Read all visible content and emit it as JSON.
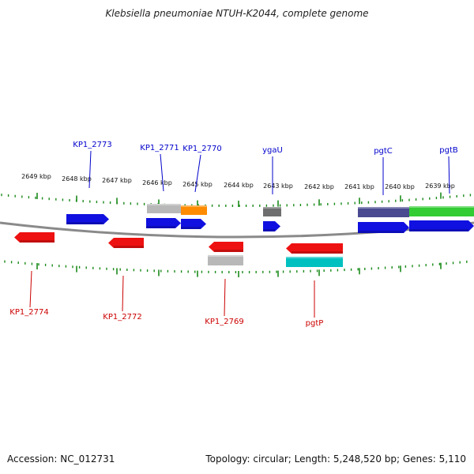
{
  "title": "Klebsiella pneumoniae NTUH-K2044, complete genome",
  "footer": {
    "accession": "Accession: NC_012731",
    "summary": "Topology: circular; Length: 5,248,520 bp; Genes: 5,110"
  },
  "colors": {
    "forward_label": "#0000cc",
    "reverse_label": "#cc0000",
    "ticks": "#1a8a1a",
    "backbone": "#888888"
  },
  "scale_labels": [
    {
      "kbp": 2649,
      "text": "2649 kbp"
    },
    {
      "kbp": 2648,
      "text": "2648 kbp"
    },
    {
      "kbp": 2647,
      "text": "2647 kbp"
    },
    {
      "kbp": 2646,
      "text": "2646 kbp"
    },
    {
      "kbp": 2645,
      "text": "2645 kbp"
    },
    {
      "kbp": 2644,
      "text": "2644 kbp"
    },
    {
      "kbp": 2643,
      "text": "2643 kbp"
    },
    {
      "kbp": 2642,
      "text": "2642 kbp"
    },
    {
      "kbp": 2641,
      "text": "2641 kbp"
    },
    {
      "kbp": 2640,
      "text": "2640 kbp"
    },
    {
      "kbp": 2639,
      "text": "2639 kbp"
    }
  ],
  "forward_genes": [
    {
      "label": "KP1_2773",
      "color": "#1010e0"
    },
    {
      "label": "KP1_2771",
      "color": "#1010e0"
    },
    {
      "label": "KP1_2770",
      "color": "#1010e0"
    },
    {
      "label": "ygaU",
      "color": "#1010e0"
    },
    {
      "label": "pgtC",
      "color": "#1010e0"
    },
    {
      "label": "pgtB",
      "color": "#1010e0"
    }
  ],
  "reverse_genes": [
    {
      "label": "KP1_2774",
      "color": "#ee1111"
    },
    {
      "label": "KP1_2772",
      "color": "#ee1111"
    },
    {
      "label": "KP1_2769",
      "color": "#ee1111"
    },
    {
      "label": "pgtP",
      "color": "#ee1111"
    }
  ],
  "cog_blocks": [
    {
      "color": "#b8b8b8"
    },
    {
      "color": "#ff8c00"
    },
    {
      "color": "#6e6e6e"
    },
    {
      "color": "#4a4a90"
    },
    {
      "color": "#33cc33"
    },
    {
      "color": "#b8b8b8"
    },
    {
      "color": "#00c0c0"
    }
  ]
}
